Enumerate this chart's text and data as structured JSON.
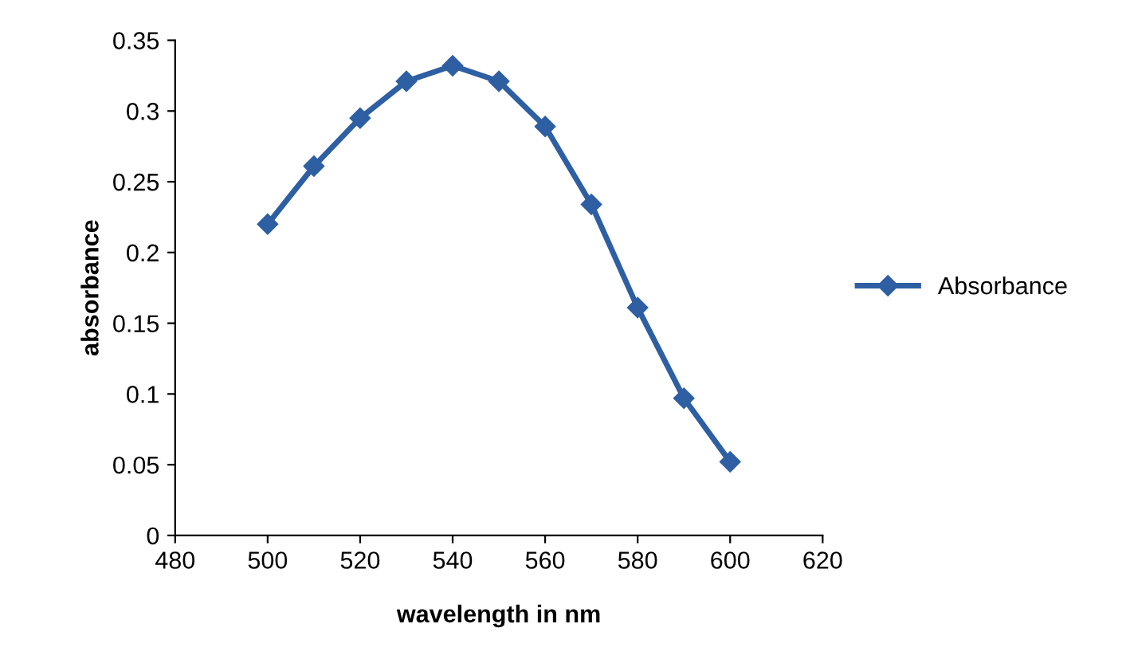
{
  "chart_data": {
    "type": "line",
    "xlabel": "wavelength in nm",
    "ylabel": "absorbance",
    "x": [
      500,
      510,
      520,
      530,
      540,
      550,
      560,
      570,
      580,
      590,
      600
    ],
    "series": [
      {
        "name": "Absorbance",
        "color": "#2e5fa3",
        "values": [
          0.22,
          0.261,
          0.295,
          0.321,
          0.332,
          0.321,
          0.289,
          0.234,
          0.161,
          0.097,
          0.052
        ]
      }
    ],
    "xlim": [
      480,
      620
    ],
    "xticks": [
      480,
      500,
      520,
      540,
      560,
      580,
      600,
      620
    ],
    "ylim": [
      0,
      0.35
    ],
    "yticks": [
      0,
      0.05,
      0.1,
      0.15,
      0.2,
      0.25,
      0.3,
      0.35
    ],
    "grid": false,
    "legend": "right",
    "marker": "diamond",
    "line_style": "solid"
  }
}
